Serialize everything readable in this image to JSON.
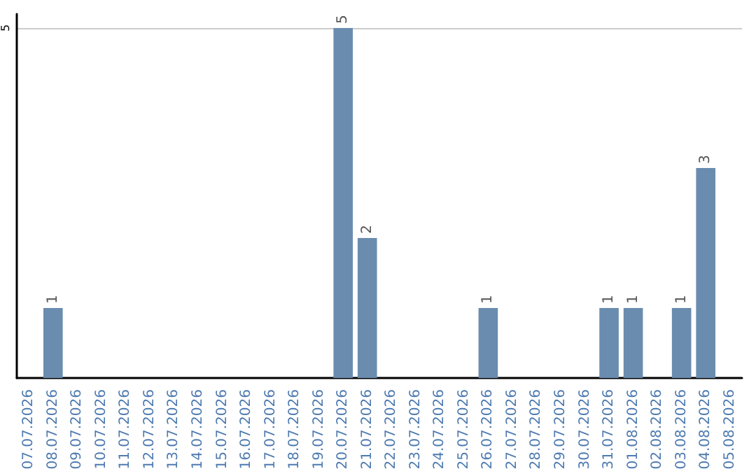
{
  "chart_data": {
    "type": "bar",
    "categories": [
      "07.07.2026",
      "08.07.2026",
      "09.07.2026",
      "10.07.2026",
      "11.07.2026",
      "12.07.2026",
      "13.07.2026",
      "14.07.2026",
      "15.07.2026",
      "16.07.2026",
      "17.07.2026",
      "18.07.2026",
      "19.07.2026",
      "20.07.2026",
      "21.07.2026",
      "22.07.2026",
      "23.07.2026",
      "24.07.2026",
      "25.07.2026",
      "26.07.2026",
      "27.07.2026",
      "28.07.2026",
      "29.07.2026",
      "30.07.2026",
      "31.07.2026",
      "01.08.2026",
      "02.08.2026",
      "03.08.2026",
      "04.08.2026",
      "05.08.2026"
    ],
    "values": [
      0,
      1,
      0,
      0,
      0,
      0,
      0,
      0,
      0,
      0,
      0,
      0,
      0,
      5,
      2,
      0,
      0,
      0,
      0,
      1,
      0,
      0,
      0,
      0,
      1,
      1,
      0,
      1,
      3,
      0
    ],
    "value_labels": [
      null,
      "1",
      null,
      null,
      null,
      null,
      null,
      null,
      null,
      null,
      null,
      null,
      null,
      "5",
      "2",
      null,
      null,
      null,
      null,
      "1",
      null,
      null,
      null,
      null,
      "1",
      "1",
      null,
      "1",
      "3",
      null
    ],
    "color": "#6a8caf",
    "ylim": [
      0,
      5.2
    ],
    "yticks": [
      5
    ],
    "grid": "y"
  }
}
